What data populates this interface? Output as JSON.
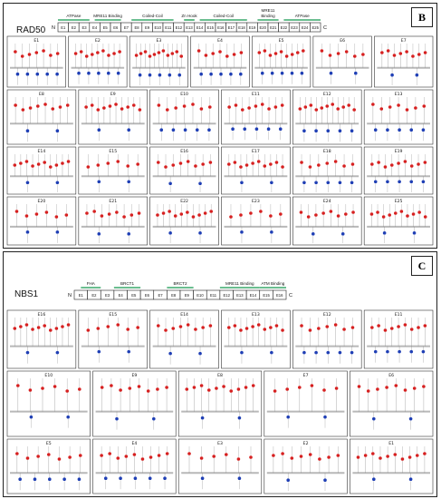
{
  "panelB": {
    "label": "B",
    "title": "RAD50",
    "map": {
      "n": "N",
      "c": "C",
      "exons": [
        "E1",
        "E2",
        "E3",
        "E4",
        "E5",
        "E6",
        "E7",
        "E8",
        "E9",
        "E10",
        "E11",
        "E12",
        "E13",
        "E14",
        "E15",
        "E16",
        "E17",
        "E18",
        "E19",
        "E20",
        "E21",
        "E22",
        "E23",
        "E24",
        "E25"
      ],
      "domains": [
        "ATPase",
        "MRE11 Binding",
        "Coiled-Coil",
        "Zn Hook",
        "Coiled-Coil",
        "MRE11\nBinding",
        "ATPase"
      ]
    },
    "rows": [
      [
        "E1",
        "E2",
        "E3",
        "E4",
        "E5",
        "E6",
        "E7"
      ],
      [
        "E8",
        "E9",
        "E10",
        "E11",
        "E12",
        "E13"
      ],
      [
        "E14",
        "E15",
        "E16",
        "E17",
        "E18",
        "E19"
      ],
      [
        "E20",
        "E21",
        "E22",
        "E23",
        "E24",
        "E25"
      ]
    ]
  },
  "panelC": {
    "label": "C",
    "title": "NBS1",
    "map": {
      "n": "N",
      "c": "C",
      "exons": [
        "E1",
        "E2",
        "E3",
        "E4",
        "E5",
        "E6",
        "E7",
        "E8",
        "E9",
        "E10",
        "E11",
        "E12",
        "E13",
        "E14",
        "E15",
        "E16"
      ],
      "domains": [
        "FHA",
        "BRCT1",
        "BRCT2",
        "MRE11 Binding",
        "ATM Binding"
      ]
    },
    "rows": [
      [
        "E16",
        "E15",
        "E14",
        "E13",
        "E12",
        "E11"
      ],
      [
        "E10",
        "E9",
        "E8",
        "E7",
        "E6"
      ],
      [
        "E5",
        "E4",
        "E3",
        "E2",
        "E1"
      ]
    ]
  },
  "colors": {
    "upper": "#d62020",
    "lower": "#1f3fb5",
    "axis": "#b8b8b8",
    "green": "#3aa86b"
  }
}
